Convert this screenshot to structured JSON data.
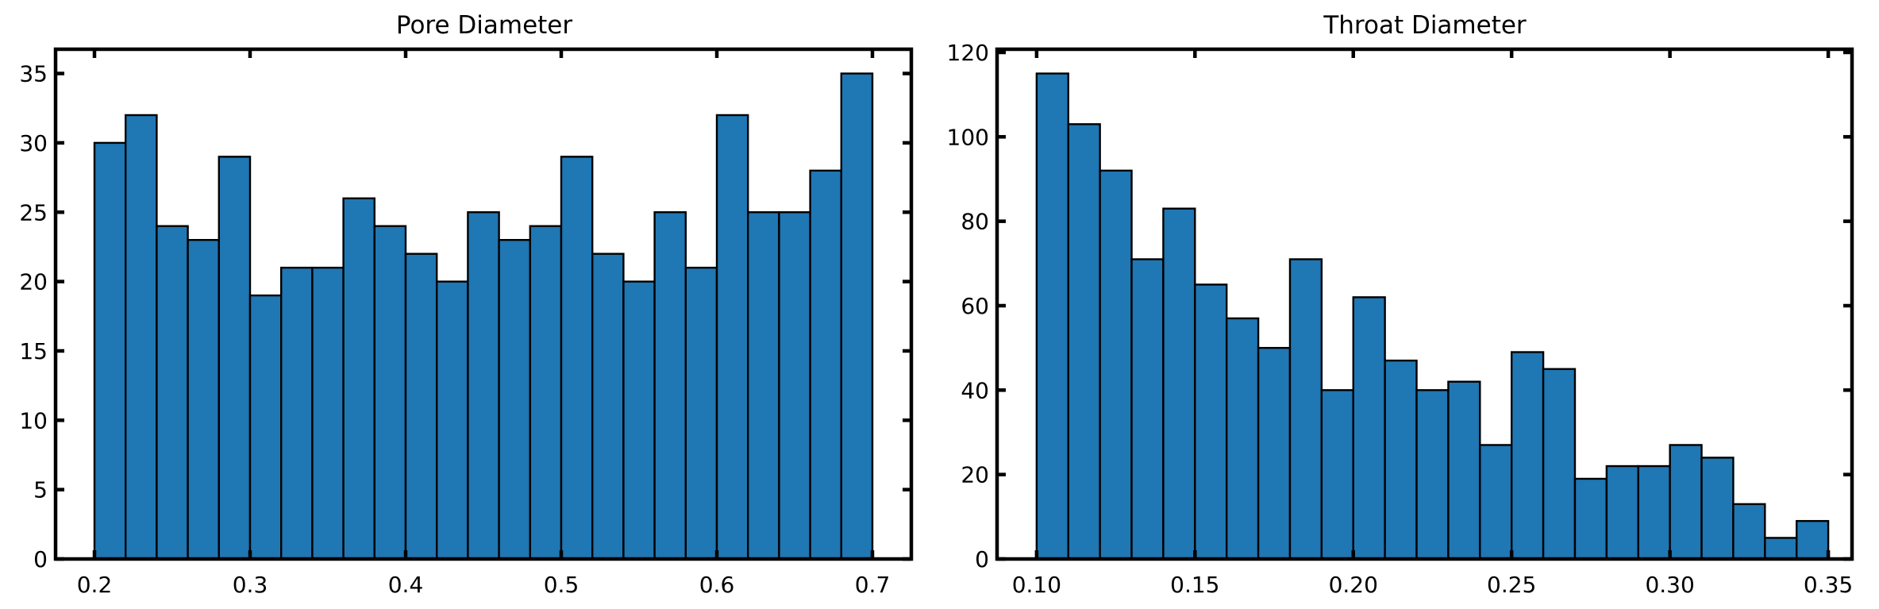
{
  "chart_data": [
    {
      "type": "bar",
      "title": "Pore Diameter",
      "xlabel": "",
      "ylabel": "",
      "bar_color": "#1f77b4",
      "edge_color": "#000000",
      "bin_edges": [
        0.2,
        0.22,
        0.24,
        0.26,
        0.28,
        0.3,
        0.32,
        0.34,
        0.36,
        0.38,
        0.4,
        0.42,
        0.44,
        0.46,
        0.48,
        0.5,
        0.52,
        0.54,
        0.56,
        0.58,
        0.6,
        0.62,
        0.64,
        0.66,
        0.68,
        0.7
      ],
      "values": [
        30,
        32,
        24,
        23,
        29,
        19,
        21,
        21,
        26,
        24,
        22,
        20,
        25,
        23,
        24,
        29,
        22,
        20,
        25,
        21,
        32,
        25,
        25,
        28,
        35
      ],
      "xlim": [
        0.175,
        0.725
      ],
      "ylim": [
        0,
        36.75
      ],
      "xticks": [
        0.2,
        0.3,
        0.4,
        0.5,
        0.6,
        0.7
      ],
      "xtick_labels": [
        "0.2",
        "0.3",
        "0.4",
        "0.5",
        "0.6",
        "0.7"
      ],
      "yticks": [
        0,
        5,
        10,
        15,
        20,
        25,
        30,
        35
      ],
      "ytick_labels": [
        "0",
        "5",
        "10",
        "15",
        "20",
        "25",
        "30",
        "35"
      ],
      "grid": false,
      "legend": "none"
    },
    {
      "type": "bar",
      "title": "Throat Diameter",
      "xlabel": "",
      "ylabel": "",
      "bar_color": "#1f77b4",
      "edge_color": "#000000",
      "bin_edges": [
        0.1,
        0.11,
        0.12,
        0.13,
        0.14,
        0.15,
        0.16,
        0.17,
        0.18,
        0.19,
        0.2,
        0.21,
        0.22,
        0.23,
        0.24,
        0.25,
        0.26,
        0.27,
        0.28,
        0.29,
        0.3,
        0.31,
        0.32,
        0.33,
        0.34,
        0.35
      ],
      "values": [
        115,
        103,
        92,
        71,
        83,
        65,
        57,
        50,
        71,
        40,
        62,
        47,
        40,
        42,
        27,
        49,
        45,
        19,
        22,
        22,
        27,
        24,
        13,
        5,
        9
      ],
      "xlim": [
        0.0875,
        0.3575
      ],
      "ylim": [
        0,
        120.75
      ],
      "xticks": [
        0.1,
        0.15,
        0.2,
        0.25,
        0.3,
        0.35
      ],
      "xtick_labels": [
        "0.10",
        "0.15",
        "0.20",
        "0.25",
        "0.30",
        "0.35"
      ],
      "yticks": [
        0,
        20,
        40,
        60,
        80,
        100,
        120
      ],
      "ytick_labels": [
        "0",
        "20",
        "40",
        "60",
        "80",
        "100",
        "120"
      ],
      "grid": false,
      "legend": "none"
    }
  ]
}
